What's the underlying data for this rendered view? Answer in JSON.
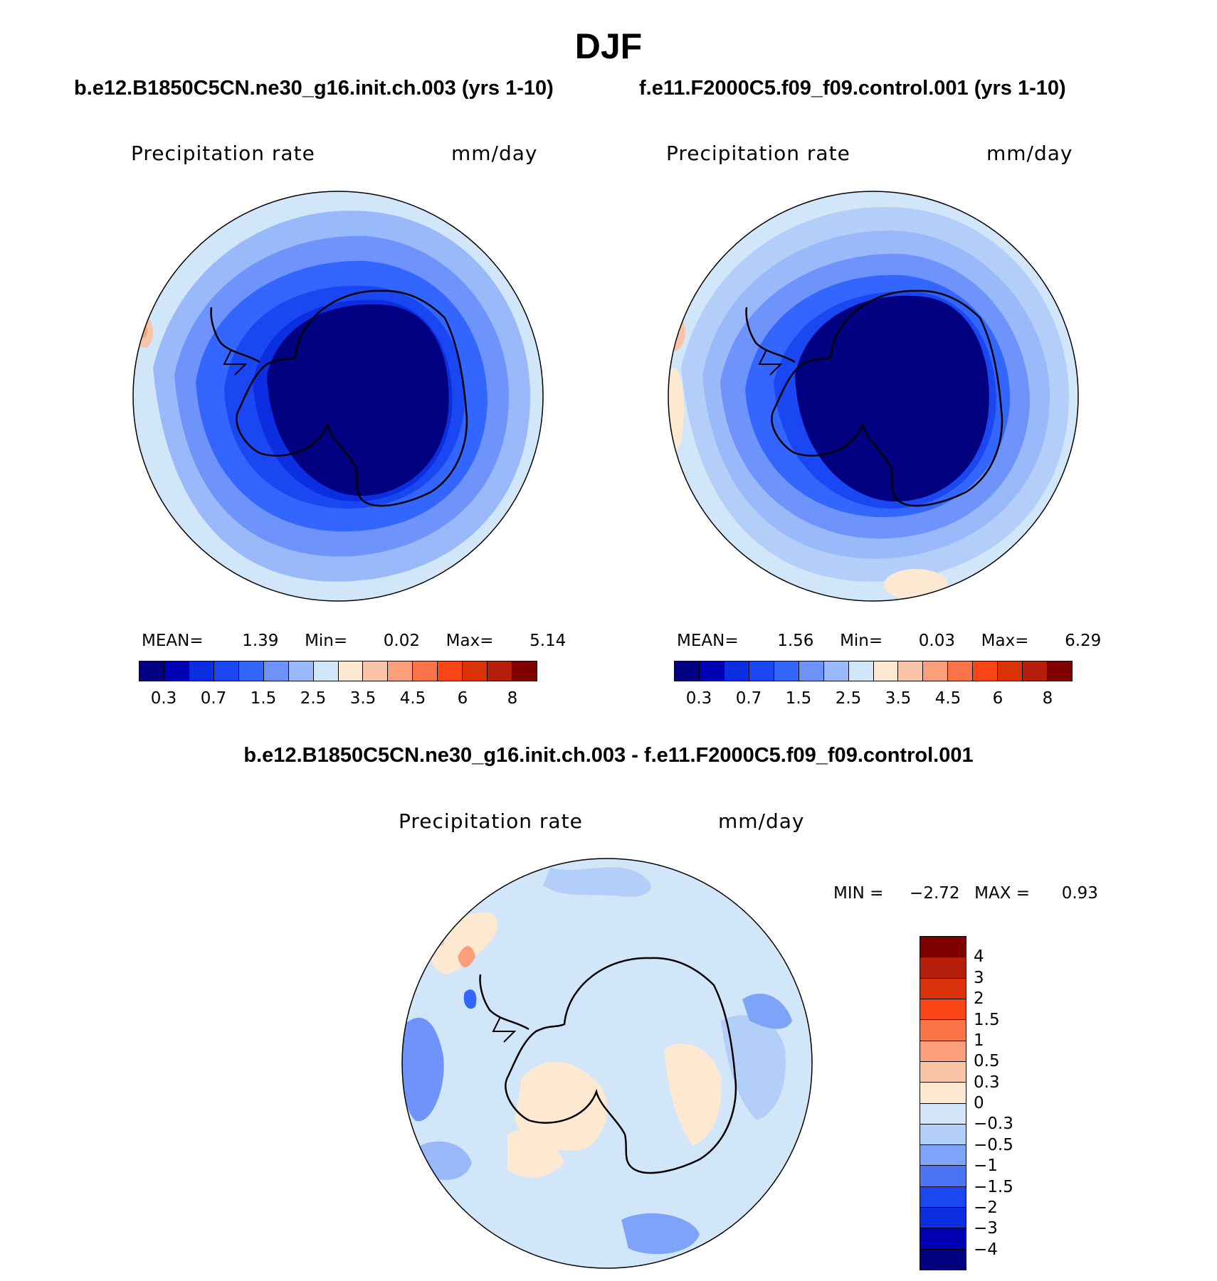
{
  "figure": {
    "title": "DJF",
    "panel_left": {
      "case": "b.e12.B1850C5CN.ne30_g16.init.ch.003 (yrs 1-10)",
      "variable": "Precipitation rate",
      "units": "mm/day",
      "mean_label": "MEAN=",
      "mean": "1.39",
      "min_label": "Min=",
      "min": "0.02",
      "max_label": "Max=",
      "max": "5.14"
    },
    "panel_right": {
      "case": "f.e11.F2000C5.f09_f09.control.001 (yrs 1-10)",
      "variable": "Precipitation rate",
      "units": "mm/day",
      "mean_label": "MEAN=",
      "mean": "1.56",
      "min_label": "Min=",
      "min": "0.03",
      "max_label": "Max=",
      "max": "6.29"
    },
    "panel_diff": {
      "case": "b.e12.B1850C5CN.ne30_g16.init.ch.003 - f.e11.F2000C5.f09_f09.control.001",
      "variable": "Precipitation rate",
      "units": "mm/day",
      "min_label": "MIN =",
      "min": "−2.72",
      "max_label": "MAX =",
      "max": "0.93"
    },
    "colorbar_abs": {
      "tick_labels": [
        "0.3",
        "0.7",
        "1.5",
        "2.5",
        "3.5",
        "4.5",
        "6",
        "8"
      ],
      "colors": [
        "#000080",
        "#0000b3",
        "#0a2ee0",
        "#1a47f2",
        "#3366ff",
        "#6e93fa",
        "#9ab9fa",
        "#d2e6fa",
        "#fde8d2",
        "#fac4a8",
        "#fa9e7c",
        "#fa7448",
        "#fa4616",
        "#dc320a",
        "#b41e0a",
        "#800000"
      ]
    },
    "colorbar_diff": {
      "tick_labels": [
        "4",
        "3",
        "2",
        "1.5",
        "1",
        "0.5",
        "0.3",
        "0",
        "−0.3",
        "−0.5",
        "−1",
        "−1.5",
        "−2",
        "−3",
        "−4"
      ],
      "colors": [
        "#800000",
        "#b41e0a",
        "#dc320a",
        "#fa4616",
        "#fa7448",
        "#fa9e7c",
        "#fac4a8",
        "#fde8d2",
        "#d2e6fa",
        "#b4cefa",
        "#7ea4fa",
        "#4a75f5",
        "#1a47f2",
        "#0a2ee0",
        "#0000b3",
        "#000080"
      ]
    }
  }
}
